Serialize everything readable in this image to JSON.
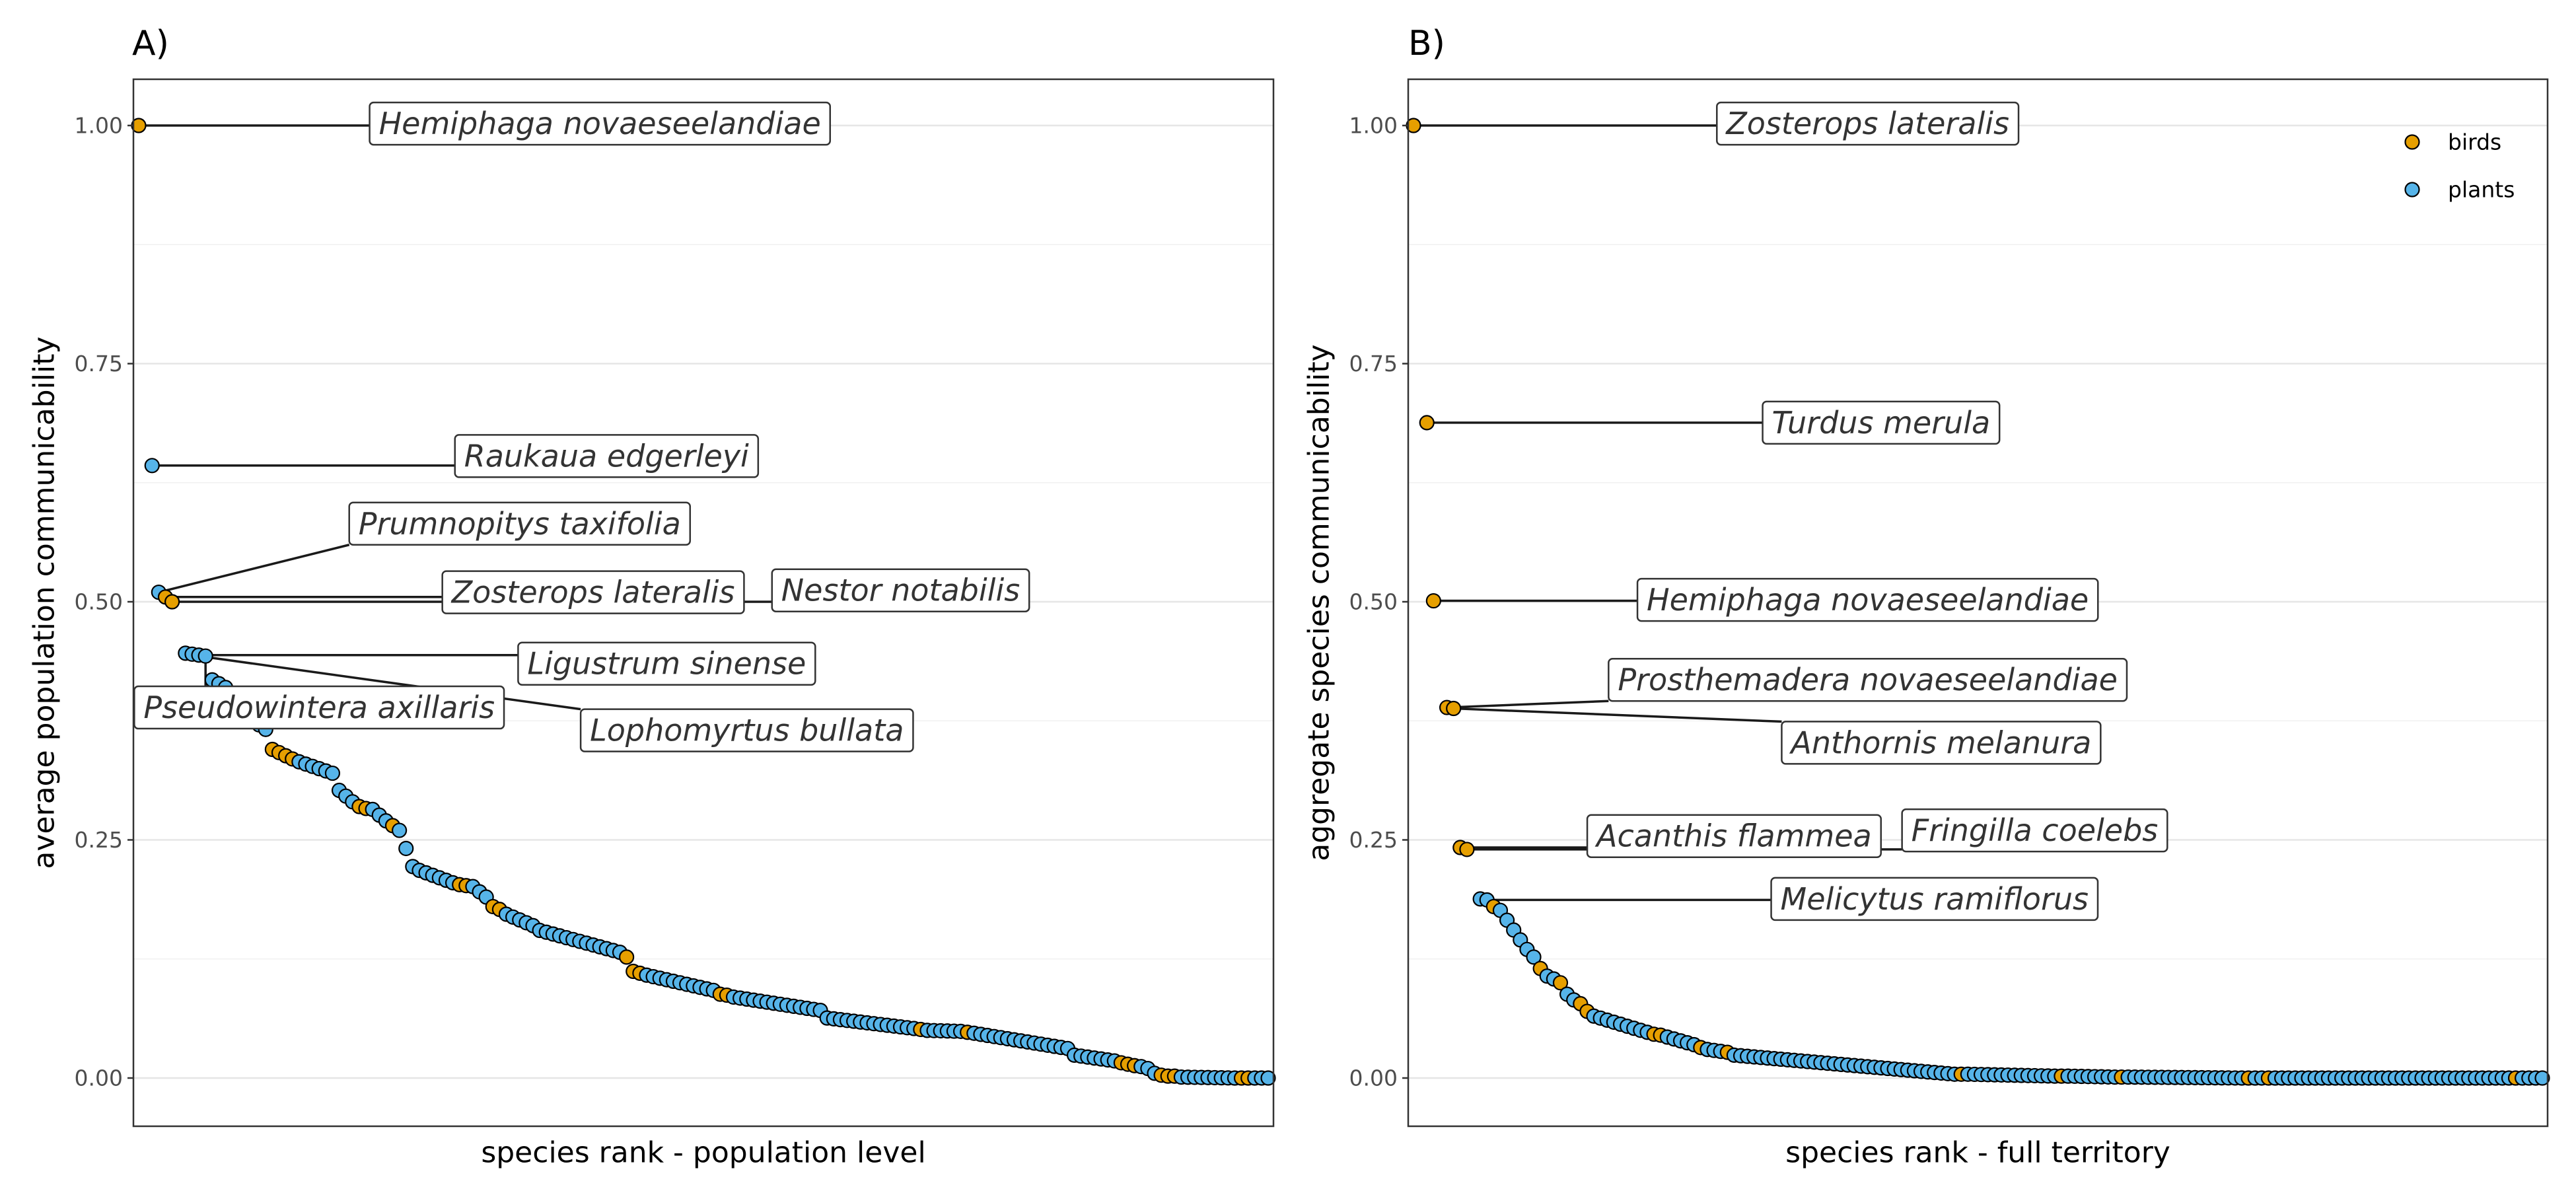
{
  "colors": {
    "birds": "#E69F00",
    "plants": "#56B4E9"
  },
  "legend": {
    "position": "top-right",
    "items": [
      {
        "key": "birds",
        "label": "birds"
      },
      {
        "key": "plants",
        "label": "plants"
      }
    ]
  },
  "chart_data": [
    {
      "type": "scatter",
      "panel_tag": "A)",
      "xlabel": "species rank - population level",
      "ylabel": "average population communicability",
      "ylim": [
        0,
        1
      ],
      "yticks": [
        0,
        0.25,
        0.5,
        0.75,
        1
      ],
      "ytick_labels": [
        "0.00",
        "0.25",
        "0.50",
        "0.75",
        "1.00"
      ],
      "grid": true,
      "x_range": [
        1,
        170
      ],
      "point_segments": [
        {
          "from": [
            1,
            1.0
          ],
          "to": [
            1,
            1.0
          ],
          "n": 1,
          "group": "birds"
        },
        {
          "from": [
            3,
            0.643
          ],
          "to": [
            3,
            0.643
          ],
          "n": 1,
          "group": "plants"
        },
        {
          "from": [
            4,
            0.51
          ],
          "to": [
            4,
            0.51
          ],
          "n": 1,
          "group": "plants"
        },
        {
          "from": [
            5,
            0.505
          ],
          "to": [
            5,
            0.505
          ],
          "n": 1,
          "group": "birds"
        },
        {
          "from": [
            6,
            0.5
          ],
          "to": [
            6,
            0.5
          ],
          "n": 1,
          "group": "birds"
        },
        {
          "from": [
            8,
            0.446
          ],
          "to": [
            11,
            0.443
          ],
          "n": 4,
          "group": "plants"
        },
        {
          "from": [
            12,
            0.418
          ],
          "to": [
            14,
            0.41
          ],
          "n": 3,
          "group": "plants"
        },
        {
          "from": [
            15,
            0.39
          ],
          "to": [
            20,
            0.366
          ],
          "n": 6,
          "group": "plants"
        },
        {
          "from": [
            21,
            0.345
          ],
          "to": [
            24,
            0.335
          ],
          "n": 4,
          "group": "birds"
        },
        {
          "from": [
            25,
            0.332
          ],
          "to": [
            30,
            0.32
          ],
          "n": 6,
          "group": "plants"
        },
        {
          "from": [
            31,
            0.302
          ],
          "to": [
            33,
            0.29
          ],
          "n": 3,
          "group": "plants"
        },
        {
          "from": [
            34,
            0.285
          ],
          "to": [
            35,
            0.283
          ],
          "n": 2,
          "group": "birds"
        },
        {
          "from": [
            36,
            0.282
          ],
          "to": [
            38,
            0.27
          ],
          "n": 3,
          "group": "plants"
        },
        {
          "from": [
            39,
            0.265
          ],
          "to": [
            39,
            0.265
          ],
          "n": 1,
          "group": "birds"
        },
        {
          "from": [
            40,
            0.26
          ],
          "to": [
            42,
            0.222
          ],
          "n": 3,
          "group": "plants"
        },
        {
          "from": [
            43,
            0.218
          ],
          "to": [
            48,
            0.205
          ],
          "n": 6,
          "group": "plants"
        },
        {
          "from": [
            49,
            0.203
          ],
          "to": [
            50,
            0.202
          ],
          "n": 2,
          "group": "birds"
        },
        {
          "from": [
            51,
            0.201
          ],
          "to": [
            53,
            0.19
          ],
          "n": 3,
          "group": "plants"
        },
        {
          "from": [
            54,
            0.18
          ],
          "to": [
            55,
            0.177
          ],
          "n": 2,
          "group": "birds"
        },
        {
          "from": [
            56,
            0.172
          ],
          "to": [
            60,
            0.16
          ],
          "n": 5,
          "group": "plants"
        },
        {
          "from": [
            61,
            0.155
          ],
          "to": [
            73,
            0.132
          ],
          "n": 13,
          "group": "plants"
        },
        {
          "from": [
            74,
            0.127
          ],
          "to": [
            74,
            0.127
          ],
          "n": 1,
          "group": "birds"
        },
        {
          "from": [
            75,
            0.112
          ],
          "to": [
            76,
            0.11
          ],
          "n": 2,
          "group": "birds"
        },
        {
          "from": [
            77,
            0.108
          ],
          "to": [
            87,
            0.092
          ],
          "n": 11,
          "group": "plants"
        },
        {
          "from": [
            88,
            0.088
          ],
          "to": [
            89,
            0.087
          ],
          "n": 2,
          "group": "birds"
        },
        {
          "from": [
            90,
            0.085
          ],
          "to": [
            103,
            0.071
          ],
          "n": 14,
          "group": "plants"
        },
        {
          "from": [
            104,
            0.063
          ],
          "to": [
            117,
            0.052
          ],
          "n": 14,
          "group": "plants"
        },
        {
          "from": [
            118,
            0.051
          ],
          "to": [
            118,
            0.051
          ],
          "n": 1,
          "group": "birds"
        },
        {
          "from": [
            119,
            0.05
          ],
          "to": [
            124,
            0.049
          ],
          "n": 6,
          "group": "plants"
        },
        {
          "from": [
            125,
            0.048
          ],
          "to": [
            125,
            0.048
          ],
          "n": 1,
          "group": "birds"
        },
        {
          "from": [
            126,
            0.047
          ],
          "to": [
            140,
            0.031
          ],
          "n": 15,
          "group": "plants"
        },
        {
          "from": [
            141,
            0.024
          ],
          "to": [
            147,
            0.018
          ],
          "n": 7,
          "group": "plants"
        },
        {
          "from": [
            148,
            0.016
          ],
          "to": [
            150,
            0.013
          ],
          "n": 3,
          "group": "birds"
        },
        {
          "from": [
            151,
            0.012
          ],
          "to": [
            152,
            0.01
          ],
          "n": 2,
          "group": "plants"
        },
        {
          "from": [
            153,
            0.005
          ],
          "to": [
            153,
            0.005
          ],
          "n": 1,
          "group": "plants"
        },
        {
          "from": [
            154,
            0.003
          ],
          "to": [
            154,
            0.003
          ],
          "n": 1,
          "group": "birds"
        },
        {
          "from": [
            155,
            0.002
          ],
          "to": [
            156,
            0.002
          ],
          "n": 2,
          "group": "birds"
        },
        {
          "from": [
            157,
            0.001
          ],
          "to": [
            165,
            0.0
          ],
          "n": 9,
          "group": "plants"
        },
        {
          "from": [
            166,
            0.0
          ],
          "to": [
            166,
            0.0
          ],
          "n": 1,
          "group": "birds"
        },
        {
          "from": [
            167,
            0.0
          ],
          "to": [
            167,
            0.0
          ],
          "n": 1,
          "group": "birds"
        },
        {
          "from": [
            168,
            0.0
          ],
          "to": [
            168,
            0.0
          ],
          "n": 1,
          "group": "plants"
        },
        {
          "from": [
            169,
            0.0
          ],
          "to": [
            170,
            0.0
          ],
          "n": 2,
          "group": "plants"
        }
      ],
      "labels": [
        {
          "text": "Hemiphaga novaeseelandiae",
          "point": [
            1,
            1.0
          ],
          "at": [
            70,
            1.002
          ]
        },
        {
          "text": "Raukaua edgerleyi",
          "point": [
            3,
            0.643
          ],
          "at": [
            71,
            0.653
          ]
        },
        {
          "text": "Prumnopitys taxifolia",
          "point": [
            4,
            0.51
          ],
          "at": [
            58,
            0.582
          ]
        },
        {
          "text": "Zosterops lateralis",
          "point": [
            5,
            0.505
          ],
          "at": [
            69,
            0.51
          ]
        },
        {
          "text": "Nestor notabilis",
          "point": [
            6,
            0.5
          ],
          "at": [
            115,
            0.512
          ]
        },
        {
          "text": "Ligustrum sinense",
          "point": [
            10,
            0.444
          ],
          "at": [
            80,
            0.435
          ]
        },
        {
          "text": "Pseudowintera axillaris",
          "point": [
            11,
            0.443
          ],
          "at": [
            28,
            0.389
          ]
        },
        {
          "text": "Lophomyrtus bullata",
          "point": [
            9,
            0.444
          ],
          "at": [
            92,
            0.365
          ]
        }
      ]
    },
    {
      "type": "scatter",
      "panel_tag": "B)",
      "xlabel": "species rank - full territory",
      "ylabel": "aggregate species communicability",
      "ylim": [
        0,
        1
      ],
      "yticks": [
        0,
        0.25,
        0.5,
        0.75,
        1
      ],
      "ytick_labels": [
        "0.00",
        "0.25",
        "0.50",
        "0.75",
        "1.00"
      ],
      "grid": true,
      "x_range": [
        1,
        170
      ],
      "point_segments": [
        {
          "from": [
            1,
            1.0
          ],
          "to": [
            1,
            1.0
          ],
          "n": 1,
          "group": "birds"
        },
        {
          "from": [
            3,
            0.688
          ],
          "to": [
            3,
            0.688
          ],
          "n": 1,
          "group": "birds"
        },
        {
          "from": [
            4,
            0.501
          ],
          "to": [
            4,
            0.501
          ],
          "n": 1,
          "group": "birds"
        },
        {
          "from": [
            6,
            0.389
          ],
          "to": [
            7,
            0.388
          ],
          "n": 2,
          "group": "birds"
        },
        {
          "from": [
            8,
            0.242
          ],
          "to": [
            9,
            0.24
          ],
          "n": 2,
          "group": "birds"
        },
        {
          "from": [
            11,
            0.188
          ],
          "to": [
            12,
            0.187
          ],
          "n": 2,
          "group": "plants"
        },
        {
          "from": [
            13,
            0.18
          ],
          "to": [
            13,
            0.18
          ],
          "n": 1,
          "group": "birds"
        },
        {
          "from": [
            14,
            0.176
          ],
          "to": [
            17,
            0.145
          ],
          "n": 4,
          "group": "plants"
        },
        {
          "from": [
            18,
            0.135
          ],
          "to": [
            19,
            0.127
          ],
          "n": 2,
          "group": "plants"
        },
        {
          "from": [
            20,
            0.115
          ],
          "to": [
            20,
            0.115
          ],
          "n": 1,
          "group": "birds"
        },
        {
          "from": [
            21,
            0.107
          ],
          "to": [
            22,
            0.104
          ],
          "n": 2,
          "group": "plants"
        },
        {
          "from": [
            23,
            0.1
          ],
          "to": [
            23,
            0.1
          ],
          "n": 1,
          "group": "birds"
        },
        {
          "from": [
            24,
            0.088
          ],
          "to": [
            25,
            0.082
          ],
          "n": 2,
          "group": "plants"
        },
        {
          "from": [
            26,
            0.078
          ],
          "to": [
            27,
            0.07
          ],
          "n": 2,
          "group": "birds"
        },
        {
          "from": [
            28,
            0.065
          ],
          "to": [
            36,
            0.048
          ],
          "n": 9,
          "group": "plants"
        },
        {
          "from": [
            37,
            0.046
          ],
          "to": [
            38,
            0.045
          ],
          "n": 2,
          "group": "birds"
        },
        {
          "from": [
            39,
            0.043
          ],
          "to": [
            43,
            0.035
          ],
          "n": 5,
          "group": "plants"
        },
        {
          "from": [
            44,
            0.032
          ],
          "to": [
            44,
            0.032
          ],
          "n": 1,
          "group": "birds"
        },
        {
          "from": [
            45,
            0.03
          ],
          "to": [
            47,
            0.028
          ],
          "n": 3,
          "group": "plants"
        },
        {
          "from": [
            48,
            0.027
          ],
          "to": [
            48,
            0.027
          ],
          "n": 1,
          "group": "birds"
        },
        {
          "from": [
            49,
            0.024
          ],
          "to": [
            82,
            0.004
          ],
          "n": 34,
          "group": "plants"
        },
        {
          "from": [
            83,
            0.004
          ],
          "to": [
            83,
            0.004
          ],
          "n": 1,
          "group": "birds"
        },
        {
          "from": [
            84,
            0.004
          ],
          "to": [
            97,
            0.002
          ],
          "n": 14,
          "group": "plants"
        },
        {
          "from": [
            98,
            0.002
          ],
          "to": [
            98,
            0.002
          ],
          "n": 1,
          "group": "birds"
        },
        {
          "from": [
            99,
            0.002
          ],
          "to": [
            106,
            0.001
          ],
          "n": 8,
          "group": "plants"
        },
        {
          "from": [
            107,
            0.001
          ],
          "to": [
            107,
            0.001
          ],
          "n": 1,
          "group": "birds"
        },
        {
          "from": [
            108,
            0.001
          ],
          "to": [
            125,
            0.0
          ],
          "n": 18,
          "group": "plants"
        },
        {
          "from": [
            126,
            0.0
          ],
          "to": [
            126,
            0.0
          ],
          "n": 1,
          "group": "birds"
        },
        {
          "from": [
            127,
            0.0
          ],
          "to": [
            128,
            0.0
          ],
          "n": 2,
          "group": "plants"
        },
        {
          "from": [
            129,
            0.0
          ],
          "to": [
            129,
            0.0
          ],
          "n": 1,
          "group": "birds"
        },
        {
          "from": [
            130,
            0.0
          ],
          "to": [
            165,
            0.0
          ],
          "n": 36,
          "group": "plants"
        },
        {
          "from": [
            166,
            0.0
          ],
          "to": [
            166,
            0.0
          ],
          "n": 1,
          "group": "birds"
        },
        {
          "from": [
            167,
            0.0
          ],
          "to": [
            170,
            0.0
          ],
          "n": 4,
          "group": "plants"
        }
      ],
      "labels": [
        {
          "text": "Zosterops lateralis",
          "point": [
            1,
            1.0
          ],
          "at": [
            69,
            1.002
          ]
        },
        {
          "text": "Turdus merula",
          "point": [
            3,
            0.688
          ],
          "at": [
            71,
            0.688
          ]
        },
        {
          "text": "Hemiphaga novaeseelandiae",
          "point": [
            4,
            0.501
          ],
          "at": [
            69,
            0.502
          ]
        },
        {
          "text": "Prosthemadera novaeseelandiae",
          "point": [
            6,
            0.389
          ],
          "at": [
            69,
            0.418
          ]
        },
        {
          "text": "Anthornis melanura",
          "point": [
            7,
            0.388
          ],
          "at": [
            80,
            0.352
          ]
        },
        {
          "text": "Acanthis flammea",
          "point": [
            8,
            0.242
          ],
          "at": [
            49,
            0.254
          ]
        },
        {
          "text": "Fringilla coelebs",
          "point": [
            9,
            0.24
          ],
          "at": [
            94,
            0.26
          ]
        },
        {
          "text": "Melicytus ramiflorus",
          "point": [
            12,
            0.187
          ],
          "at": [
            79,
            0.188
          ]
        }
      ]
    }
  ]
}
